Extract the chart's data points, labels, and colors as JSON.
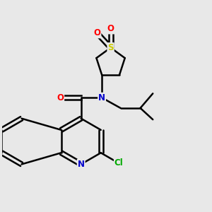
{
  "bg_color": "#e8e8e8",
  "bond_color": "#000000",
  "bond_width": 1.8,
  "colors": {
    "N": "#0000cc",
    "O": "#ff0000",
    "S": "#cccc00",
    "Cl": "#00aa00",
    "C": "#000000"
  },
  "figsize": [
    3.0,
    3.0
  ],
  "dpi": 100
}
